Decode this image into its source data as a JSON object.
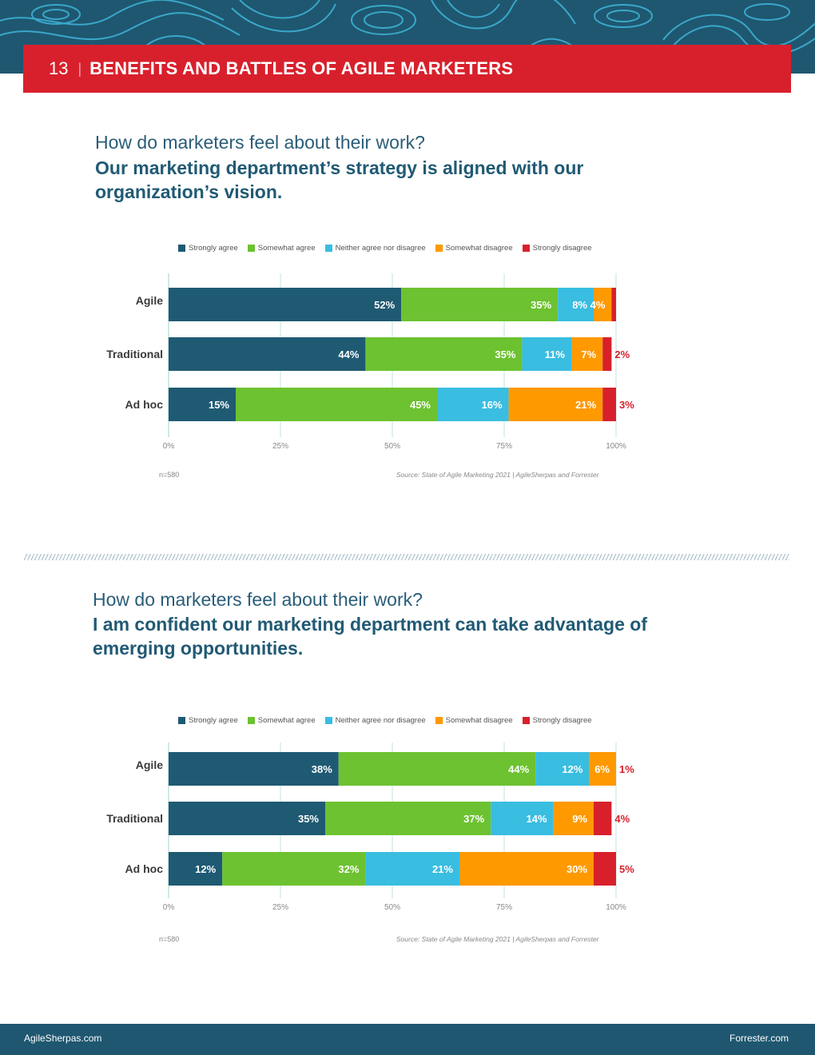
{
  "header": {
    "page_number": "13",
    "separator": "|",
    "title": "BENEFITS AND BATTLES OF AGILE MARKETERS"
  },
  "colors": {
    "strongly_agree": "#1f5a73",
    "somewhat_agree": "#6cc230",
    "neither": "#39bde0",
    "somewhat_disagree": "#ff9900",
    "strongly_disagree": "#d8202c",
    "banner": "#d8202c",
    "dark_blue": "#1f5770"
  },
  "chart_data": [
    {
      "type": "bar",
      "orientation": "horizontal-stacked",
      "question": "How do marketers feel about their work?",
      "title": "Our marketing department’s strategy is aligned with our organization’s vision.",
      "legend": [
        "Strongly agree",
        "Somewhat agree",
        "Neither agree nor disagree",
        "Somewhat disagree",
        "Strongly disagree"
      ],
      "categories": [
        "Agile",
        "Traditional",
        "Ad hoc"
      ],
      "series": [
        {
          "name": "Strongly agree",
          "values": [
            52,
            44,
            15
          ]
        },
        {
          "name": "Somewhat agree",
          "values": [
            35,
            35,
            45
          ]
        },
        {
          "name": "Neither agree nor disagree",
          "values": [
            8,
            11,
            16
          ]
        },
        {
          "name": "Somewhat disagree",
          "values": [
            4,
            7,
            21
          ]
        },
        {
          "name": "Strongly disagree",
          "values": [
            1,
            2,
            3
          ]
        }
      ],
      "labels": [
        [
          "52%",
          "35%",
          "8%",
          "4%",
          ""
        ],
        [
          "44%",
          "35%",
          "11%",
          "7%",
          "2%"
        ],
        [
          "15%",
          "45%",
          "16%",
          "21%",
          "3%"
        ]
      ],
      "xticks": [
        "0%",
        "25%",
        "50%",
        "75%",
        "100%"
      ],
      "xlim": [
        0,
        100
      ],
      "n_note": "n=580",
      "source": "Source: State of Agile Marketing 2021 | AgileSherpas and Forrester"
    },
    {
      "type": "bar",
      "orientation": "horizontal-stacked",
      "question": "How do marketers feel about their work?",
      "title": "I am confident our marketing department can take advantage of emerging opportunities.",
      "legend": [
        "Strongly agree",
        "Somewhat agree",
        "Neither agree nor disagree",
        "Somewhat disagree",
        "Strongly disagree"
      ],
      "categories": [
        "Agile",
        "Traditional",
        "Ad hoc"
      ],
      "series": [
        {
          "name": "Strongly agree",
          "values": [
            38,
            35,
            12
          ]
        },
        {
          "name": "Somewhat agree",
          "values": [
            44,
            37,
            32
          ]
        },
        {
          "name": "Neither agree nor disagree",
          "values": [
            12,
            14,
            21
          ]
        },
        {
          "name": "Somewhat disagree",
          "values": [
            6,
            9,
            30
          ]
        },
        {
          "name": "Strongly disagree",
          "values": [
            1,
            4,
            5
          ]
        }
      ],
      "labels": [
        [
          "38%",
          "44%",
          "12%",
          "6%",
          "1%"
        ],
        [
          "35%",
          "37%",
          "14%",
          "9%",
          "4%"
        ],
        [
          "12%",
          "32%",
          "21%",
          "30%",
          "5%"
        ]
      ],
      "xticks": [
        "0%",
        "25%",
        "50%",
        "75%",
        "100%"
      ],
      "xlim": [
        0,
        100
      ],
      "n_note": "n=580",
      "source": "Source: State of Agile Marketing 2021 | AgileSherpas and Forrester"
    }
  ],
  "footer": {
    "left": "AgileSherpas.com",
    "right": "Forrester.com"
  }
}
